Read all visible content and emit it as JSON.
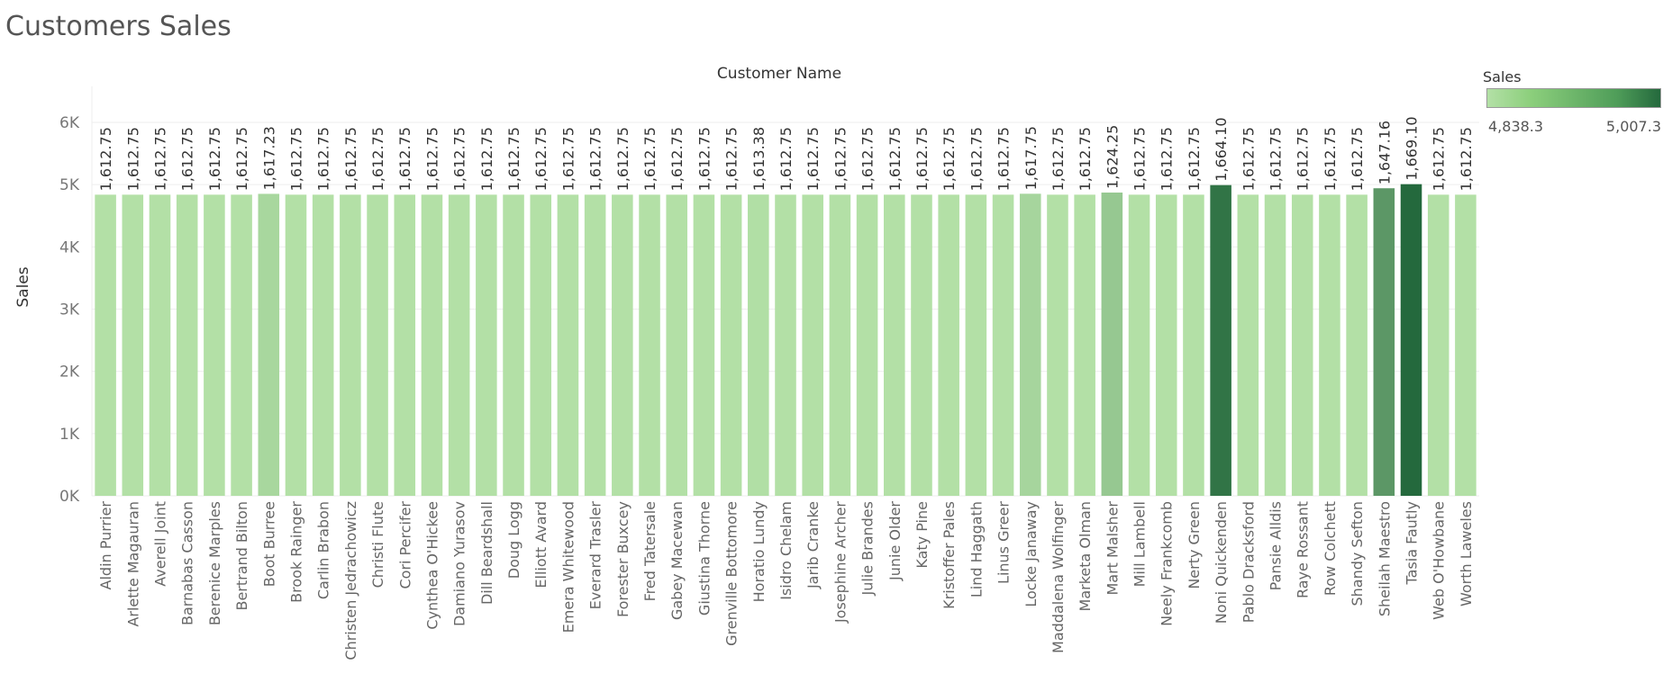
{
  "dashboard": {
    "title": "Customers Sales"
  },
  "legend": {
    "title": "Sales",
    "min_label": "4,838.3",
    "max_label": "5,007.3",
    "color_low": "#b3e0a6",
    "color_high": "#24693d"
  },
  "chart_data": {
    "type": "bar",
    "title": "",
    "xlabel": "Customer Name",
    "ylabel": "Sales",
    "ylim": [
      0,
      6000
    ],
    "y_ticks": [
      {
        "value": 0,
        "label": "0K"
      },
      {
        "value": 1000,
        "label": "1K"
      },
      {
        "value": 2000,
        "label": "2K"
      },
      {
        "value": 3000,
        "label": "3K"
      },
      {
        "value": 4000,
        "label": "4K"
      },
      {
        "value": 5000,
        "label": "5K"
      },
      {
        "value": 6000,
        "label": "6K"
      }
    ],
    "color_range": [
      4838.3,
      5007.3
    ],
    "grid": true,
    "legend_position": "top-right",
    "categories": [
      "Aldin Purrier",
      "Arlette Magauran",
      "Averell Joint",
      "Barnabas Casson",
      "Berenice Marples",
      "Bertrand Bilton",
      "Boot Burree",
      "Brook Rainger",
      "Carlin Brabon",
      "Christen Jedrachowicz",
      "Christi Flute",
      "Cori Percifer",
      "Cynthea O'Hickee",
      "Damiano Yurasov",
      "Dill Beardshall",
      "Doug Logg",
      "Elliott Avard",
      "Emera Whitewood",
      "Everard Trasler",
      "Forester Buxcey",
      "Fred Tatersale",
      "Gabey Macewan",
      "Giustina Thorne",
      "Grenville Bottomore",
      "Horatio Lundy",
      "Isidro Chelam",
      "Jarib Cranke",
      "Josephine Archer",
      "Julie Brandes",
      "Junie Older",
      "Katy Pine",
      "Kristoffer Pales",
      "Lind Haggath",
      "Linus Greer",
      "Locke Janaway",
      "Maddalena Wolfinger",
      "Marketa Olman",
      "Mart Malsher",
      "Mill Lambell",
      "Neely Frankcomb",
      "Nerty Green",
      "Noni Quickenden",
      "Pablo Dracksford",
      "Pansie Alldis",
      "Raye Rossant",
      "Row Colchett",
      "Shandy Sefton",
      "Sheilah Maestro",
      "Tasia Fautly",
      "Web O'Howbane",
      "Worth Laweles"
    ],
    "values": [
      4838.3,
      4838.3,
      4838.3,
      4838.3,
      4838.3,
      4838.3,
      4851.7,
      4838.3,
      4838.3,
      4838.3,
      4838.3,
      4838.3,
      4838.3,
      4838.3,
      4838.3,
      4838.3,
      4838.3,
      4838.3,
      4838.3,
      4838.3,
      4838.3,
      4838.3,
      4838.3,
      4838.3,
      4840.1,
      4838.3,
      4838.3,
      4838.3,
      4838.3,
      4838.3,
      4838.3,
      4838.3,
      4838.3,
      4838.3,
      4853.3,
      4838.3,
      4838.3,
      4872.8,
      4838.3,
      4838.3,
      4838.3,
      4992.3,
      4838.3,
      4838.3,
      4838.3,
      4838.3,
      4838.3,
      4941.5,
      5007.3,
      4838.3,
      4838.3
    ],
    "data_labels": [
      "1,612.75",
      "1,612.75",
      "1,612.75",
      "1,612.75",
      "1,612.75",
      "1,612.75",
      "1,617.23",
      "1,612.75",
      "1,612.75",
      "1,612.75",
      "1,612.75",
      "1,612.75",
      "1,612.75",
      "1,612.75",
      "1,612.75",
      "1,612.75",
      "1,612.75",
      "1,612.75",
      "1,612.75",
      "1,612.75",
      "1,612.75",
      "1,612.75",
      "1,612.75",
      "1,612.75",
      "1,613.38",
      "1,612.75",
      "1,612.75",
      "1,612.75",
      "1,612.75",
      "1,612.75",
      "1,612.75",
      "1,612.75",
      "1,612.75",
      "1,612.75",
      "1,617.75",
      "1,612.75",
      "1,612.75",
      "1,624.25",
      "1,612.75",
      "1,612.75",
      "1,612.75",
      "1,664.10",
      "1,612.75",
      "1,612.75",
      "1,612.75",
      "1,612.75",
      "1,612.75",
      "1,647.16",
      "1,669.10",
      "1,612.75",
      "1,612.75"
    ]
  }
}
